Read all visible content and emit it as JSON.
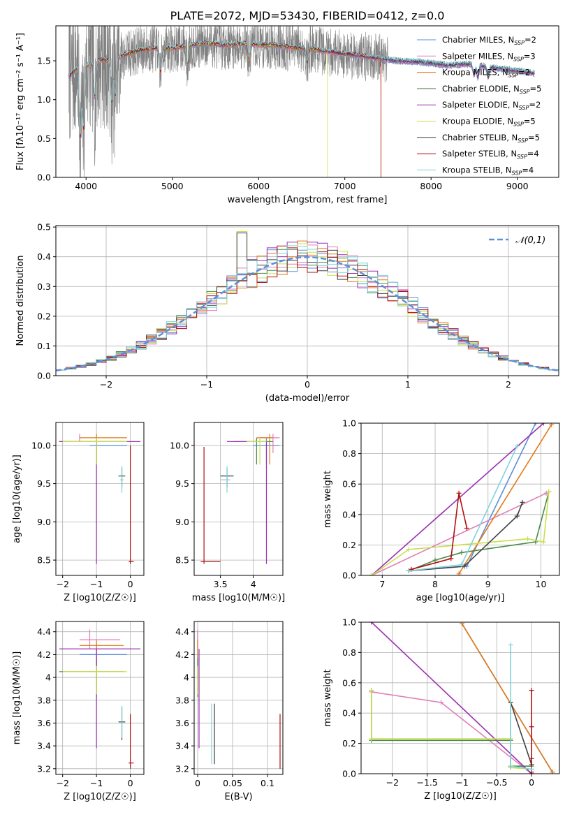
{
  "figure_title": "PLATE=2072, MJD=53430, FIBERID=0412, z=0.0",
  "colors": {
    "gray": "#808080",
    "grid": "#b0b0b0",
    "dashed_normal": "#5b8fdb",
    "series": [
      "#5b8fdb",
      "#e07fb8",
      "#e07a18",
      "#4a8a4a",
      "#9b2fb0",
      "#c8e04a",
      "#404040",
      "#b01010",
      "#7fd3db"
    ]
  },
  "legend_labels": [
    {
      "name": "Chabrier MILES",
      "sub": "SSP",
      "n": "2"
    },
    {
      "name": "Salpeter MILES",
      "sub": "SSP",
      "n": "3"
    },
    {
      "name": "Kroupa MILES",
      "sub": "SSP",
      "n": "2"
    },
    {
      "name": "Chabrier ELODIE",
      "sub": "SSP",
      "n": "5"
    },
    {
      "name": "Salpeter ELODIE",
      "sub": "SSP",
      "n": "2"
    },
    {
      "name": "Kroupa ELODIE",
      "sub": "SSP",
      "n": "5"
    },
    {
      "name": "Chabrier STELIB",
      "sub": "SSP",
      "n": "5"
    },
    {
      "name": "Salpeter STELIB",
      "sub": "SSP",
      "n": "4"
    },
    {
      "name": "Kroupa STELIB",
      "sub": "SSP",
      "n": "4"
    }
  ],
  "chart_data": [
    {
      "id": "spectrum",
      "type": "line",
      "xlabel": "wavelength [Angstrom, rest frame]",
      "ylabel": "Flux [fλ10⁻¹⁷ erg cm⁻² s⁻¹ A⁻¹]",
      "xlim": [
        3650,
        9480
      ],
      "ylim": [
        0,
        1.95
      ],
      "xticks": [
        4000,
        5000,
        6000,
        7000,
        8000,
        9000
      ],
      "yticks": [
        0.0,
        0.5,
        1.0,
        1.5
      ],
      "grid": false,
      "legend": "top-right",
      "observed_range": [
        3800,
        9200
      ],
      "continuum": {
        "x": [
          3800,
          3900,
          4000,
          4100,
          4200,
          4300,
          4400,
          4600,
          4800,
          5000,
          5200,
          5400,
          5600,
          5800,
          6000,
          6200,
          6400,
          6600,
          6800,
          7000,
          7200,
          7400,
          7600,
          7800,
          8000,
          8200,
          8400,
          8600,
          8800,
          9000,
          9200
        ],
        "y": [
          1.3,
          1.4,
          1.43,
          1.48,
          1.52,
          1.47,
          1.56,
          1.63,
          1.66,
          1.66,
          1.7,
          1.73,
          1.7,
          1.72,
          1.71,
          1.7,
          1.67,
          1.65,
          1.62,
          1.59,
          1.56,
          1.53,
          1.5,
          1.49,
          1.47,
          1.44,
          1.46,
          1.43,
          1.4,
          1.37,
          1.34
        ]
      },
      "absorption_features": [
        {
          "x": 3934,
          "depth": 0.9
        },
        {
          "x": 3970,
          "depth": 0.8
        },
        {
          "x": 4102,
          "depth": 0.45
        },
        {
          "x": 4300,
          "depth": 0.5
        },
        {
          "x": 4340,
          "depth": 0.45
        },
        {
          "x": 4861,
          "depth": 0.3
        },
        {
          "x": 5175,
          "depth": 0.25
        },
        {
          "x": 5890,
          "depth": 0.2
        },
        {
          "x": 6563,
          "depth": 0.18
        },
        {
          "x": 8498,
          "depth": 0.12
        },
        {
          "x": 8542,
          "depth": 0.15
        },
        {
          "x": 8662,
          "depth": 0.13
        }
      ],
      "model_cutoffs": [
        {
          "series": 2,
          "end": 7420
        },
        {
          "series": 5,
          "end": 6800
        },
        {
          "series": 7,
          "end": 7420
        }
      ]
    },
    {
      "id": "residuals",
      "type": "histogram",
      "xlabel": "(data-model)/error",
      "ylabel": "Normed distribution",
      "xlim": [
        -2.5,
        2.5
      ],
      "ylim": [
        0,
        0.505
      ],
      "xticks": [
        -2,
        -1,
        0,
        1,
        2
      ],
      "yticks": [
        0.0,
        0.1,
        0.2,
        0.3,
        0.4,
        0.5
      ],
      "grid": true,
      "legend": "top-right",
      "normal_label": "𝒩(0,1)",
      "bins": [
        -2.5,
        2.5,
        50
      ],
      "outlier_bins": [
        {
          "bin": 18,
          "value": 0.485,
          "series": 5
        },
        {
          "bin": 18,
          "value": 0.48,
          "series": 6
        },
        {
          "bin": 23,
          "value": 0.43,
          "series": 7
        },
        {
          "bin": 21,
          "value": 0.43,
          "series": 4
        }
      ]
    },
    {
      "id": "age_vs_Z",
      "type": "errorbar",
      "xlabel": "Z [log10(Z/Z⊙)]",
      "ylabel": "age  [log10(age/yr)]",
      "xlim": [
        -2.2,
        0.4
      ],
      "ylim": [
        8.3,
        10.3
      ],
      "xticks": [
        -2,
        -1,
        0
      ],
      "yticks": [
        8.5,
        9.0,
        9.5,
        10.0
      ],
      "grid": true
    },
    {
      "id": "mass_vs_mass",
      "type": "errorbar",
      "xlabel": "mass [log10(M/M⊙)]",
      "ylabel": "",
      "xlim": [
        3.1,
        4.45
      ],
      "ylim": [
        8.3,
        10.3
      ],
      "xticks": [
        3.5,
        4.0
      ],
      "yticks": [
        8.5,
        9.0,
        9.5,
        10.0
      ],
      "grid": true
    },
    {
      "id": "weight_vs_age",
      "type": "line",
      "xlabel": "age  [log10(age/yr)]",
      "ylabel": "mass weight",
      "xlim": [
        6.6,
        10.35
      ],
      "ylim": [
        0,
        1.0
      ],
      "xticks": [
        7,
        8,
        9,
        10
      ],
      "yticks": [
        0.0,
        0.2,
        0.4,
        0.6,
        0.8,
        1.0
      ],
      "grid": true,
      "series": [
        {
          "x": [
            7.5,
            7.5,
            8.6,
            9.9
          ],
          "y": [
            0.03,
            0.03,
            0.06,
            1.0
          ]
        },
        {
          "x": [
            6.8,
            10.1
          ],
          "y": [
            0.0,
            0.54
          ]
        },
        {
          "x": [
            8.45,
            10.2
          ],
          "y": [
            0.01,
            0.99
          ]
        },
        {
          "x": [
            7.5,
            8.0,
            8.5,
            9.9,
            10.15
          ],
          "y": [
            0.03,
            0.1,
            0.15,
            0.22,
            0.55
          ]
        },
        {
          "x": [
            6.8,
            10.05
          ],
          "y": [
            0.0,
            1.0
          ]
        },
        {
          "x": [
            6.8,
            7.5,
            9.75,
            10.05,
            10.15
          ],
          "y": [
            0.0,
            0.17,
            0.24,
            0.22,
            0.55
          ]
        },
        {
          "x": [
            7.5,
            8.55,
            9.55,
            9.65
          ],
          "y": [
            0.03,
            0.06,
            0.39,
            0.48
          ]
        },
        {
          "x": [
            7.55,
            8.3,
            8.45,
            8.6
          ],
          "y": [
            0.04,
            0.11,
            0.54,
            0.31
          ]
        },
        {
          "x": [
            7.5,
            8.5,
            9.55
          ],
          "y": [
            0.03,
            0.07,
            0.85
          ]
        }
      ]
    },
    {
      "id": "mass_vs_Z",
      "type": "errorbar",
      "xlabel": "Z [log10(Z/Z⊙)]",
      "ylabel": "mass [log10(M/M⊙)]",
      "xlim": [
        -2.2,
        0.4
      ],
      "ylim": [
        3.15,
        4.49
      ],
      "xticks": [
        -2,
        -1,
        0
      ],
      "yticks": [
        3.2,
        3.4,
        3.6,
        3.8,
        4.0,
        4.2,
        4.4
      ],
      "grid": true
    },
    {
      "id": "mass_vs_ebv",
      "type": "errorbar",
      "xlabel": "E(B-V)",
      "ylabel": "",
      "xlim": [
        -0.005,
        0.122
      ],
      "ylim": [
        3.15,
        4.49
      ],
      "xticks": [
        0.0,
        0.05,
        0.1
      ],
      "yticks": [
        3.2,
        3.4,
        3.6,
        3.8,
        4.0,
        4.2,
        4.4
      ],
      "grid": true
    },
    {
      "id": "weight_vs_Z",
      "type": "line",
      "xlabel": "Z [log10(Z/Z⊙)]",
      "ylabel": "mass weight",
      "xlim": [
        -2.45,
        0.4
      ],
      "ylim": [
        0,
        1.0
      ],
      "xticks": [
        -2.0,
        -1.5,
        -1.0,
        -0.5,
        0.0
      ],
      "yticks": [
        0.0,
        0.2,
        0.4,
        0.6,
        0.8,
        1.0
      ],
      "grid": true,
      "series": [
        {
          "x": [
            -1.0,
            0.3
          ],
          "y": [
            0.99,
            0.01
          ]
        },
        {
          "x": [
            -2.3,
            -1.3,
            0.0
          ],
          "y": [
            0.54,
            0.47,
            0.0
          ]
        },
        {
          "x": [
            -1.0,
            0.3
          ],
          "y": [
            0.99,
            0.01
          ]
        },
        {
          "x": [
            -2.3,
            -2.3,
            -0.3,
            -0.3,
            0.0
          ],
          "y": [
            0.55,
            0.22,
            0.22,
            0.05,
            0.05
          ]
        },
        {
          "x": [
            -2.3,
            0.0
          ],
          "y": [
            1.0,
            0.0
          ]
        },
        {
          "x": [
            -2.3,
            -2.3,
            -0.3,
            -0.3,
            0.0
          ],
          "y": [
            0.55,
            0.23,
            0.23,
            0.04,
            0.03
          ]
        },
        {
          "x": [
            -0.3,
            -0.3,
            0.0,
            0.0
          ],
          "y": [
            0.05,
            0.47,
            0.06,
            0.0
          ]
        },
        {
          "x": [
            0.0,
            0.0,
            0.0,
            0.0
          ],
          "y": [
            0.01,
            0.1,
            0.31,
            0.55
          ]
        },
        {
          "x": [
            -0.3,
            -0.3,
            0.0
          ],
          "y": [
            0.85,
            0.05,
            0.03
          ]
        }
      ]
    }
  ]
}
